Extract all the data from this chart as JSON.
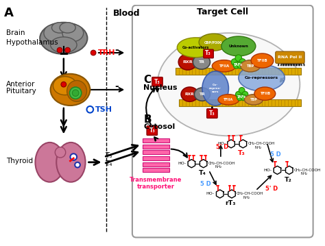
{
  "panel_a_label": "A",
  "brain_label": "Brain",
  "hypothalamus_label": "Hypothalamus",
  "trh_label": "TRH",
  "anterior_pituitary_label": [
    "Anterior",
    "Pituitary"
  ],
  "tsh_label": "TSH",
  "thyroid_label": "Thyroid",
  "blood_label": "Blood",
  "panel_b_label": "B",
  "cytosol_label": "Cytosol",
  "panel_c_label": "C",
  "nucleus_label": "Nucleus",
  "target_cell_title": "Target Cell",
  "coactivators_label": "Co-activators",
  "cbp_label": "CBP/P300",
  "unknown_label": "Unknown",
  "tfiia_label": "TFIIA",
  "tafs_label": "TAFs",
  "tbp_label": "TBP",
  "tfiib_label": "TFIIB",
  "rna_pol_label": "RNA Pol II",
  "corepressors_label": "Co-repressors",
  "rxr_label": "RXR",
  "tr_label": "TR",
  "t3_label": "T₃",
  "t4_label": "T₄",
  "t2_label": "T₂",
  "rt3_label": "rT₃",
  "transporter_label": [
    "Transmembrane",
    "transporter"
  ],
  "5prime_d_label": "5' D",
  "5_d_label": "5 D"
}
